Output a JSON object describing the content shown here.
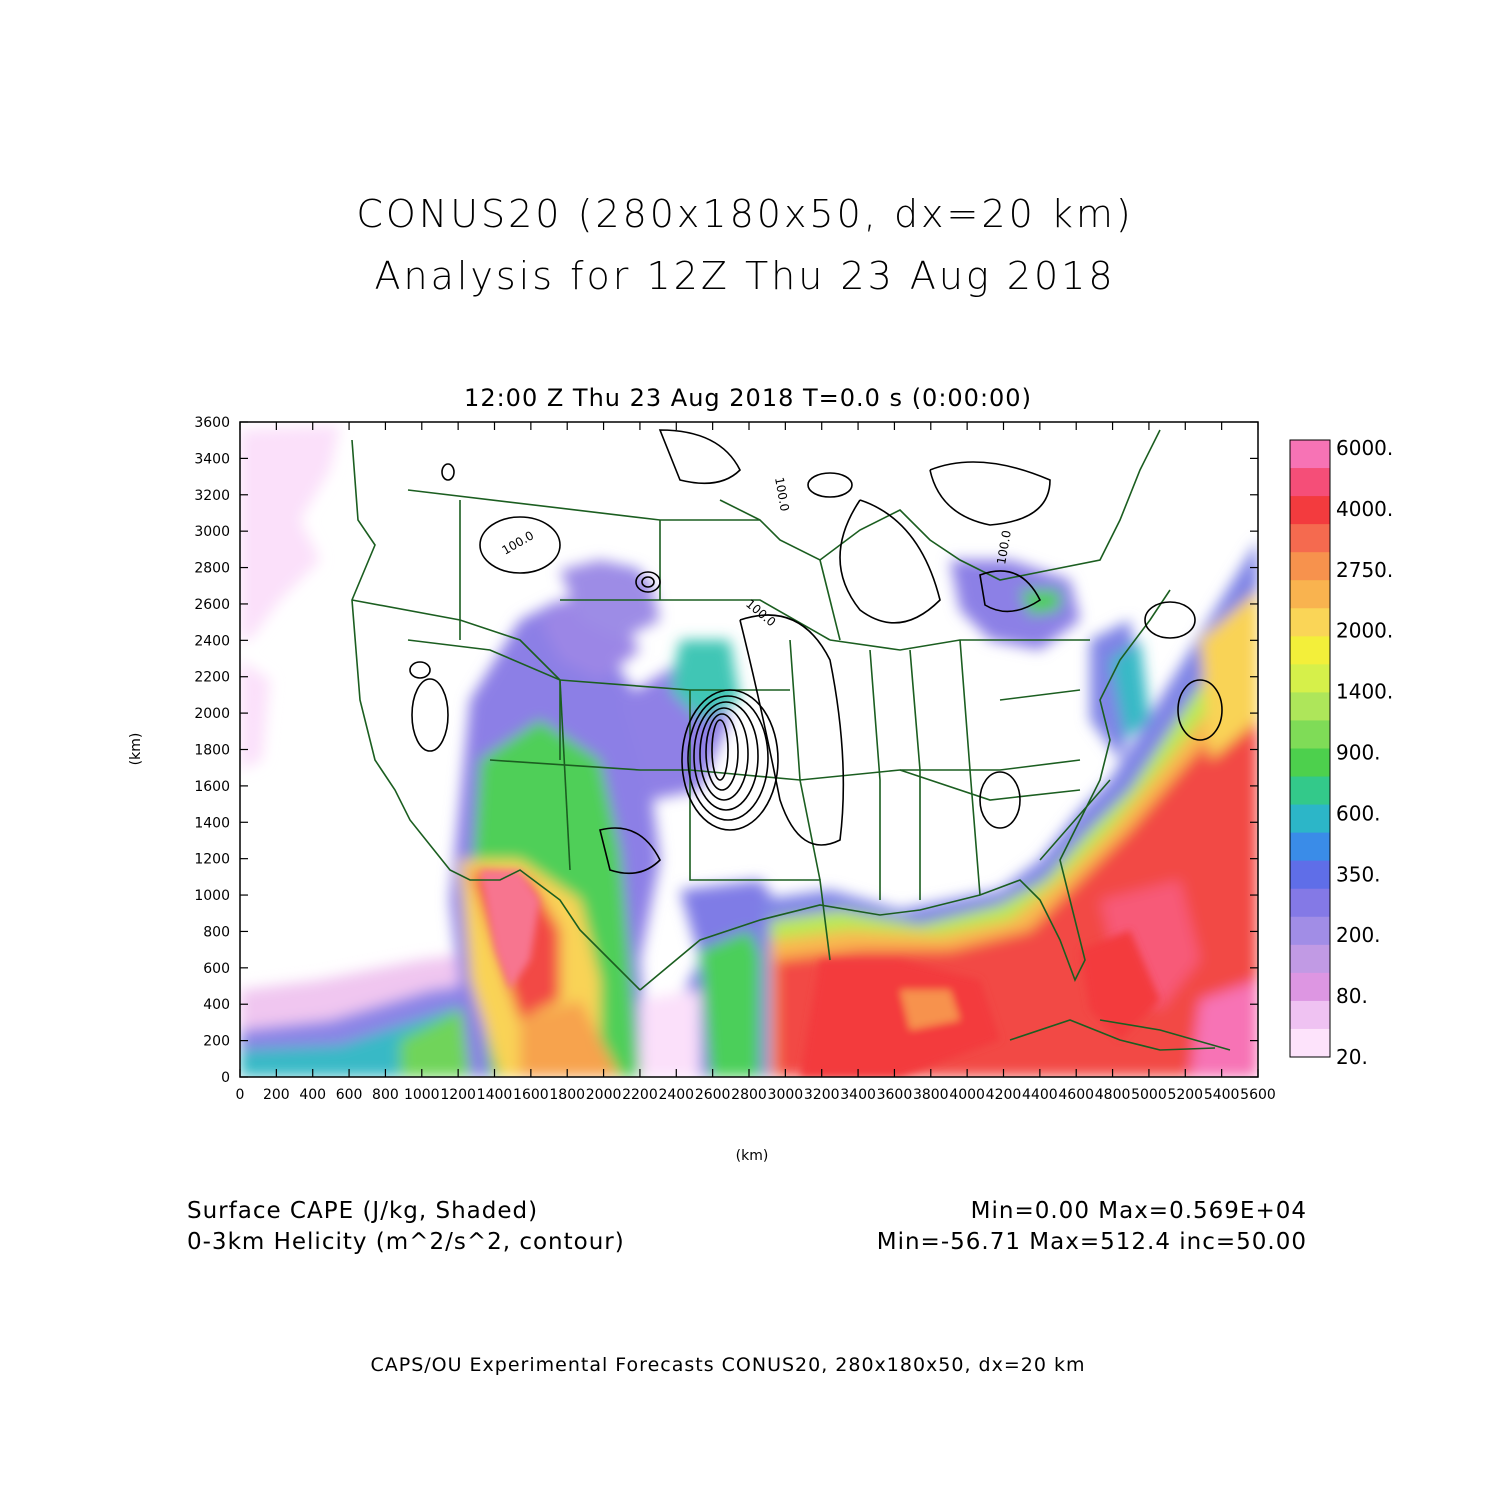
{
  "titles": {
    "line1": "CONUS20 (280x180x50, dx=20 km)",
    "line2": "Analysis for 12Z Thu 23 Aug 2018",
    "subtitle": "12:00 Z Thu 23 Aug 2018    T=0.0 s (0:00:00)"
  },
  "axes": {
    "x_label": "(km)",
    "y_label": "(km)",
    "x_range": [
      0,
      5600
    ],
    "y_range": [
      0,
      3600
    ],
    "x_ticks": [
      "0",
      "200",
      "400",
      "600",
      "800",
      "1000",
      "1200",
      "1400",
      "1600",
      "1800",
      "2000",
      "2200",
      "2400",
      "2600",
      "2800",
      "3000",
      "3200",
      "3400",
      "3600",
      "3800",
      "4000",
      "4200",
      "4400",
      "4600",
      "4800",
      "5000",
      "5200",
      "5400",
      "5600"
    ],
    "y_ticks": [
      "0",
      "200",
      "400",
      "600",
      "800",
      "1000",
      "1200",
      "1400",
      "1600",
      "1800",
      "2000",
      "2200",
      "2400",
      "2600",
      "2800",
      "3000",
      "3200",
      "3400",
      "3600"
    ]
  },
  "colorbar": {
    "labels": [
      "6000.",
      "4000.",
      "2750.",
      "2000.",
      "1400.",
      "900.",
      "600.",
      "350.",
      "200.",
      "80.",
      "20."
    ],
    "colors": [
      "#f773b5",
      "#f54e78",
      "#f33b3e",
      "#f56a4f",
      "#f7924d",
      "#f9b34f",
      "#fad557",
      "#f3ef3a",
      "#d6f04a",
      "#aee65a",
      "#7fdc57",
      "#4dd04d",
      "#33c98a",
      "#2cb6c8",
      "#3a8ce8",
      "#5f6ee8",
      "#8479e6",
      "#a18de6",
      "#c19ae4",
      "#dd96e2",
      "#efc2f2",
      "#fde3fb"
    ]
  },
  "contour_labels": [
    "100.0",
    "100.0",
    "100.0",
    "100.0"
  ],
  "info": {
    "field1": "Surface CAPE (J/kg, Shaded)",
    "field2": "0-3km Helicity (m^2/s^2, contour)",
    "stats1": "Min=0.00 Max=0.569E+04",
    "stats2": "Min=-56.71 Max=512.4 inc=50.00"
  },
  "footer": "CAPS/OU Experimental Forecasts  CONUS20, 280x180x50, dx=20 km"
}
